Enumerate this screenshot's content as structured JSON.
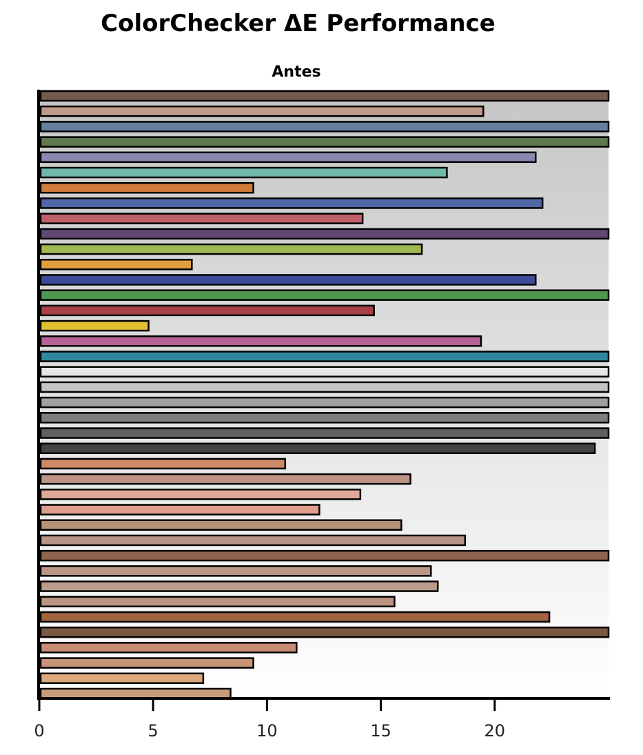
{
  "chart_data": {
    "type": "bar",
    "orientation": "horizontal",
    "title": "ColorChecker ΔE Performance",
    "subtitle": "Antes",
    "xlabel": "",
    "ylabel": "",
    "xlim": [
      0,
      25
    ],
    "xticks": [
      0,
      5,
      10,
      15,
      20
    ],
    "grid": false,
    "background": "vertical gradient gray to white",
    "bars": [
      {
        "value": 25,
        "color": "#735a50"
      },
      {
        "value": 19.5,
        "color": "#c09a88"
      },
      {
        "value": 25,
        "color": "#6880a0"
      },
      {
        "value": 25,
        "color": "#607850"
      },
      {
        "value": 21.8,
        "color": "#8888b0"
      },
      {
        "value": 17.9,
        "color": "#70b8a8"
      },
      {
        "value": 9.4,
        "color": "#d07c3c"
      },
      {
        "value": 22.1,
        "color": "#5068a8"
      },
      {
        "value": 14.2,
        "color": "#c06068"
      },
      {
        "value": 25,
        "color": "#604870"
      },
      {
        "value": 16.8,
        "color": "#a0b850"
      },
      {
        "value": 6.7,
        "color": "#e0a040"
      },
      {
        "value": 21.8,
        "color": "#3c4c98"
      },
      {
        "value": 25,
        "color": "#509850"
      },
      {
        "value": 14.7,
        "color": "#a84048"
      },
      {
        "value": 4.8,
        "color": "#e0c030"
      },
      {
        "value": 19.4,
        "color": "#b86098"
      },
      {
        "value": 25,
        "color": "#3088a0"
      },
      {
        "value": 25,
        "color": "#e6e6e4"
      },
      {
        "value": 25,
        "color": "#c4c4c4"
      },
      {
        "value": 25,
        "color": "#a0a0a0"
      },
      {
        "value": 25,
        "color": "#7e7e7e"
      },
      {
        "value": 25,
        "color": "#606060"
      },
      {
        "value": 24.4,
        "color": "#444444"
      },
      {
        "value": 10.8,
        "color": "#cc8868"
      },
      {
        "value": 16.3,
        "color": "#c09484"
      },
      {
        "value": 14.1,
        "color": "#e0a898"
      },
      {
        "value": 12.3,
        "color": "#e09c8c"
      },
      {
        "value": 15.9,
        "color": "#b89274"
      },
      {
        "value": 18.7,
        "color": "#b89484"
      },
      {
        "value": 25,
        "color": "#906450"
      },
      {
        "value": 17.2,
        "color": "#bc9488"
      },
      {
        "value": 17.5,
        "color": "#bc9c8c"
      },
      {
        "value": 15.6,
        "color": "#bc9484"
      },
      {
        "value": 22.4,
        "color": "#a06440"
      },
      {
        "value": 25,
        "color": "#7c5840"
      },
      {
        "value": 11.3,
        "color": "#c88c74"
      },
      {
        "value": 9.4,
        "color": "#c89478"
      },
      {
        "value": 7.2,
        "color": "#dca87c"
      },
      {
        "value": 8.4,
        "color": "#c89c78"
      }
    ]
  }
}
